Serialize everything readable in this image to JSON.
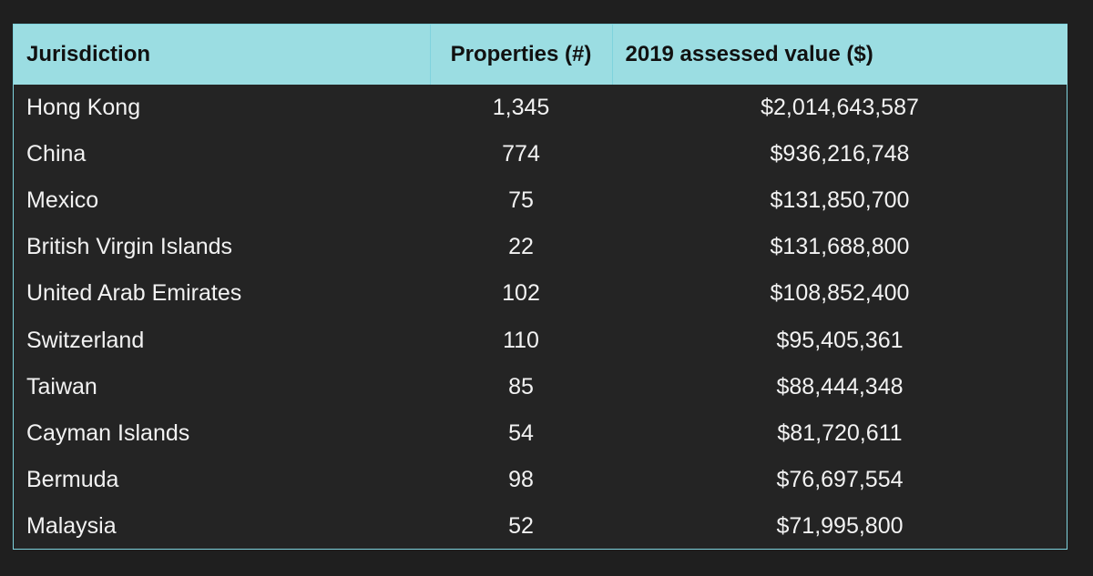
{
  "table": {
    "headers": {
      "jurisdiction": "Jurisdiction",
      "properties": "Properties (#)",
      "value": "2019 assessed value ($)"
    },
    "rows": [
      {
        "jurisdiction": "Hong Kong",
        "properties": "1,345",
        "value": "$2,014,643,587"
      },
      {
        "jurisdiction": "China",
        "properties": "774",
        "value": "$936,216,748"
      },
      {
        "jurisdiction": "Mexico",
        "properties": "75",
        "value": "$131,850,700"
      },
      {
        "jurisdiction": "British Virgin Islands",
        "properties": "22",
        "value": "$131,688,800"
      },
      {
        "jurisdiction": "United Arab Emirates",
        "properties": "102",
        "value": "$108,852,400"
      },
      {
        "jurisdiction": "Switzerland",
        "properties": "110",
        "value": "$95,405,361"
      },
      {
        "jurisdiction": "Taiwan",
        "properties": "85",
        "value": "$88,444,348"
      },
      {
        "jurisdiction": "Cayman Islands",
        "properties": "54",
        "value": "$81,720,611"
      },
      {
        "jurisdiction": "Bermuda",
        "properties": "98",
        "value": "$76,697,554"
      },
      {
        "jurisdiction": "Malaysia",
        "properties": "52",
        "value": "$71,995,800"
      }
    ]
  },
  "chart_data": {
    "type": "table",
    "columns": [
      "Jurisdiction",
      "Properties (#)",
      "2019 assessed value ($)"
    ],
    "rows": [
      [
        "Hong Kong",
        1345,
        2014643587
      ],
      [
        "China",
        774,
        936216748
      ],
      [
        "Mexico",
        75,
        131850700
      ],
      [
        "British Virgin Islands",
        22,
        131688800
      ],
      [
        "United Arab Emirates",
        102,
        108852400
      ],
      [
        "Switzerland",
        110,
        95405361
      ],
      [
        "Taiwan",
        85,
        88444348
      ],
      [
        "Cayman Islands",
        54,
        81720611
      ],
      [
        "Bermuda",
        98,
        76697554
      ],
      [
        "Malaysia",
        52,
        71995800
      ]
    ]
  },
  "colors": {
    "header_background": "#9bdde2",
    "page_background": "#1f1f1f",
    "table_background": "#242424",
    "border": "#7fd3dd",
    "text": "#f2f2f2"
  }
}
